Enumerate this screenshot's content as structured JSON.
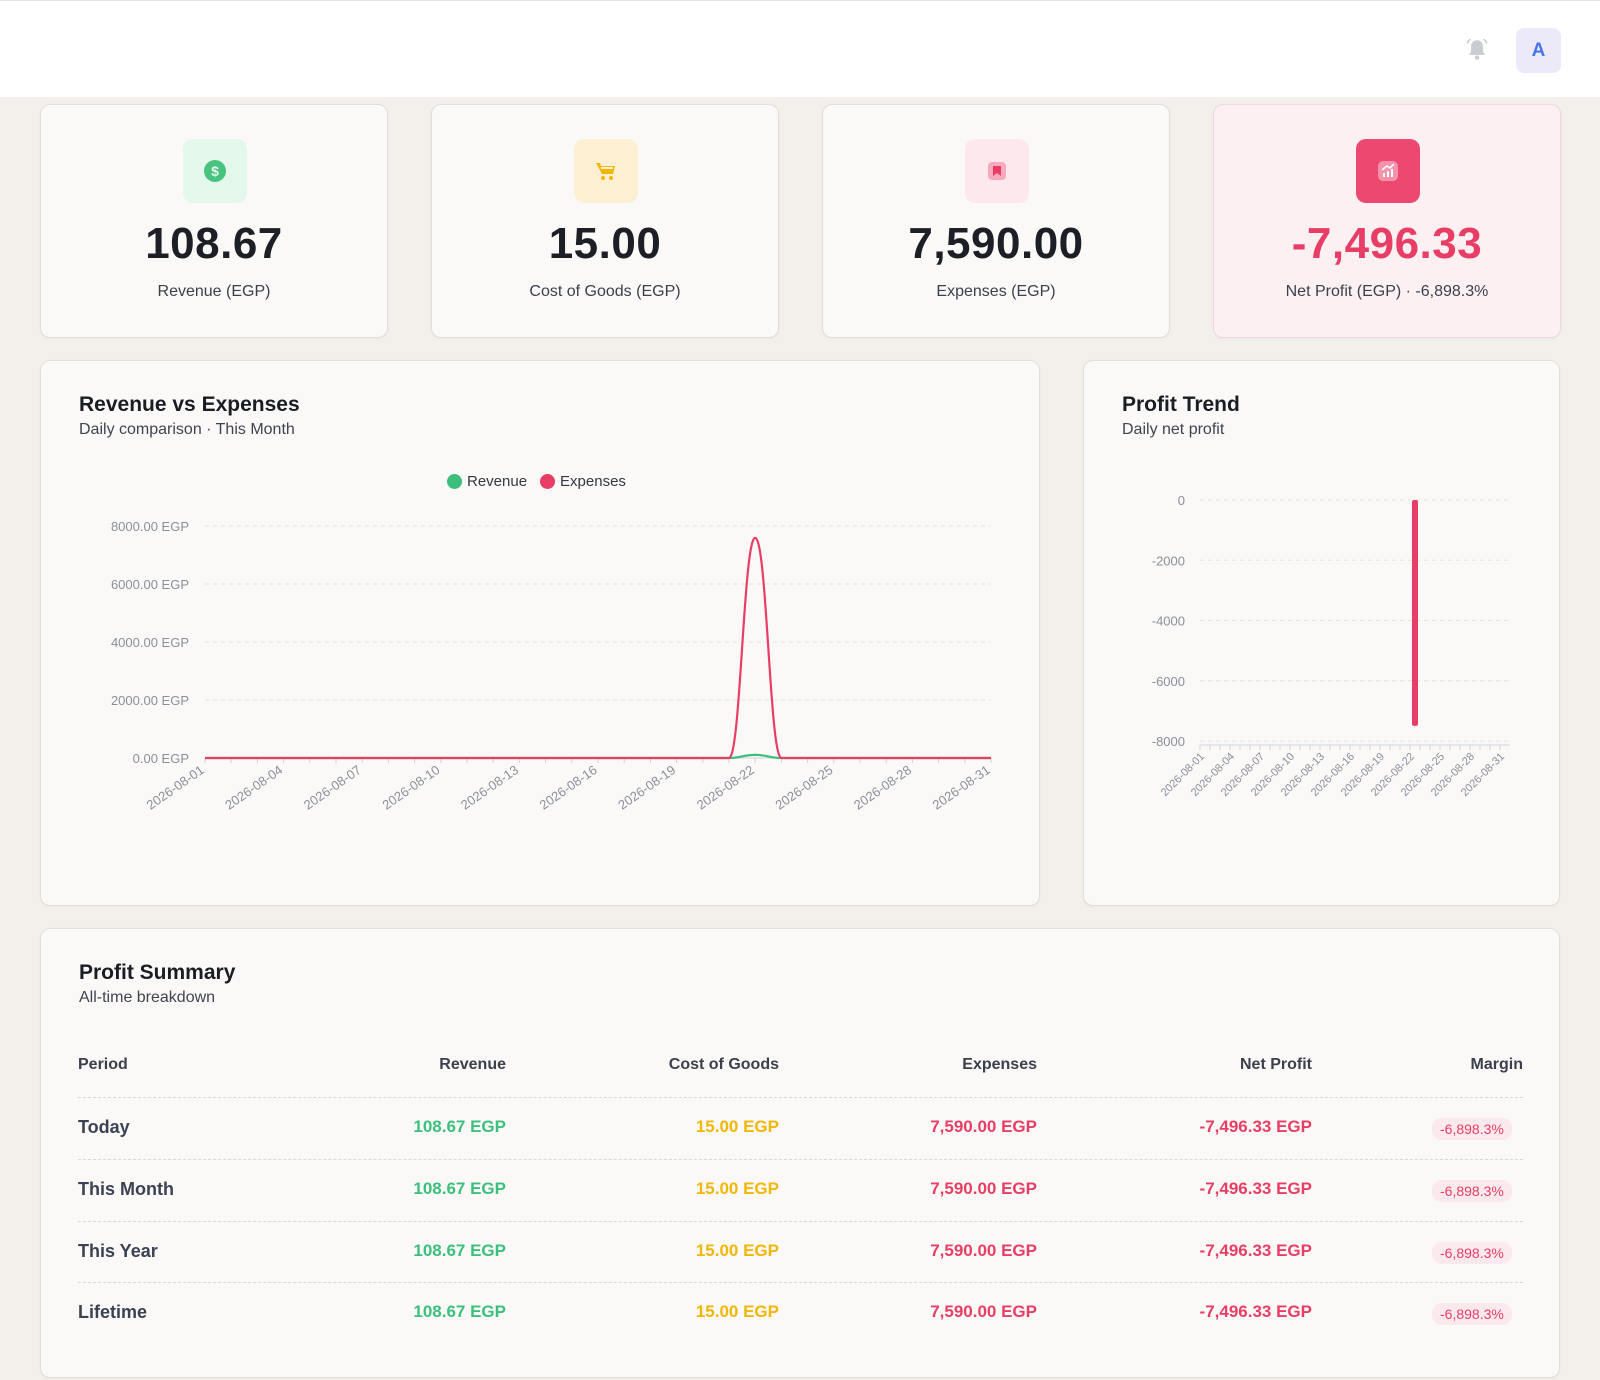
{
  "header": {
    "avatar_initial": "A"
  },
  "stats": [
    {
      "value": "108.67",
      "label": "Revenue (EGP)",
      "icon": "dollar-icon",
      "color": "#3cbf7c"
    },
    {
      "value": "15.00",
      "label": "Cost of Goods (EGP)",
      "icon": "cart-icon",
      "color": "#f2b705"
    },
    {
      "value": "7,590.00",
      "label": "Expenses (EGP)",
      "icon": "receipt-icon",
      "color": "#e83e66"
    },
    {
      "value": "-7,496.33",
      "label": "Net Profit (EGP) · -6,898.3%",
      "icon": "trend-up-icon",
      "color": "#e83e66"
    }
  ],
  "revenue_chart": {
    "title": "Revenue vs Expenses",
    "subtitle": "Daily comparison · This Month"
  },
  "profit_chart": {
    "title": "Profit Trend",
    "subtitle": "Daily net profit"
  },
  "chart_data": [
    {
      "type": "line",
      "title": "Revenue vs Expenses",
      "x": [
        "2026-08-01",
        "2026-08-02",
        "2026-08-03",
        "2026-08-04",
        "2026-08-05",
        "2026-08-06",
        "2026-08-07",
        "2026-08-08",
        "2026-08-09",
        "2026-08-10",
        "2026-08-11",
        "2026-08-12",
        "2026-08-13",
        "2026-08-14",
        "2026-08-15",
        "2026-08-16",
        "2026-08-17",
        "2026-08-18",
        "2026-08-19",
        "2026-08-20",
        "2026-08-21",
        "2026-08-22",
        "2026-08-23",
        "2026-08-24",
        "2026-08-25",
        "2026-08-26",
        "2026-08-27",
        "2026-08-28",
        "2026-08-29",
        "2026-08-30",
        "2026-08-31"
      ],
      "x_tick_labels": [
        "2026-08-01",
        "2026-08-04",
        "2026-08-07",
        "2026-08-10",
        "2026-08-13",
        "2026-08-16",
        "2026-08-19",
        "2026-08-22",
        "2026-08-25",
        "2026-08-28",
        "2026-08-31"
      ],
      "series": [
        {
          "name": "Revenue",
          "color": "#3cbf7c",
          "values": [
            0,
            0,
            0,
            0,
            0,
            0,
            0,
            0,
            0,
            0,
            0,
            0,
            0,
            0,
            0,
            0,
            0,
            0,
            0,
            0,
            0,
            108.67,
            0,
            0,
            0,
            0,
            0,
            0,
            0,
            0,
            0
          ]
        },
        {
          "name": "Expenses",
          "color": "#e83e66",
          "values": [
            0,
            0,
            0,
            0,
            0,
            0,
            0,
            0,
            0,
            0,
            0,
            0,
            0,
            0,
            0,
            0,
            0,
            0,
            0,
            0,
            0,
            7590,
            0,
            0,
            0,
            0,
            0,
            0,
            0,
            0,
            0
          ]
        }
      ],
      "ylim": [
        0,
        8000
      ],
      "y_ticks": [
        "0.00 EGP",
        "2000.00 EGP",
        "4000.00 EGP",
        "6000.00 EGP",
        "8000.00 EGP"
      ],
      "y_tick_values": [
        0,
        2000,
        4000,
        6000,
        8000
      ],
      "legend": "top",
      "grid": true
    },
    {
      "type": "bar",
      "title": "Profit Trend",
      "categories": [
        "2026-08-01",
        "2026-08-02",
        "2026-08-03",
        "2026-08-04",
        "2026-08-05",
        "2026-08-06",
        "2026-08-07",
        "2026-08-08",
        "2026-08-09",
        "2026-08-10",
        "2026-08-11",
        "2026-08-12",
        "2026-08-13",
        "2026-08-14",
        "2026-08-15",
        "2026-08-16",
        "2026-08-17",
        "2026-08-18",
        "2026-08-19",
        "2026-08-20",
        "2026-08-21",
        "2026-08-22",
        "2026-08-23",
        "2026-08-24",
        "2026-08-25",
        "2026-08-26",
        "2026-08-27",
        "2026-08-28",
        "2026-08-29",
        "2026-08-30",
        "2026-08-31"
      ],
      "x_tick_labels": [
        "2026-08-01",
        "2026-08-04",
        "2026-08-07",
        "2026-08-10",
        "2026-08-13",
        "2026-08-16",
        "2026-08-19",
        "2026-08-22",
        "2026-08-25",
        "2026-08-28",
        "2026-08-31"
      ],
      "values": [
        0,
        0,
        0,
        0,
        0,
        0,
        0,
        0,
        0,
        0,
        0,
        0,
        0,
        0,
        0,
        0,
        0,
        0,
        0,
        0,
        0,
        -7496.33,
        0,
        0,
        0,
        0,
        0,
        0,
        0,
        0,
        0
      ],
      "color": "#e83e66",
      "ylim": [
        -8000,
        0
      ],
      "y_ticks": [
        "0",
        "-2000",
        "-4000",
        "-6000",
        "-8000"
      ],
      "y_tick_values": [
        0,
        -2000,
        -4000,
        -6000,
        -8000
      ],
      "grid": true
    }
  ],
  "summary": {
    "title": "Profit Summary",
    "subtitle": "All-time breakdown",
    "columns": [
      "Period",
      "Revenue",
      "Cost of Goods",
      "Expenses",
      "Net Profit",
      "Margin"
    ],
    "rows": [
      {
        "period": "Today",
        "revenue": "108.67 EGP",
        "cogs": "15.00 EGP",
        "expenses": "7,590.00 EGP",
        "net": "-7,496.33 EGP",
        "margin": "-6,898.3%"
      },
      {
        "period": "This Month",
        "revenue": "108.67 EGP",
        "cogs": "15.00 EGP",
        "expenses": "7,590.00 EGP",
        "net": "-7,496.33 EGP",
        "margin": "-6,898.3%"
      },
      {
        "period": "This Year",
        "revenue": "108.67 EGP",
        "cogs": "15.00 EGP",
        "expenses": "7,590.00 EGP",
        "net": "-7,496.33 EGP",
        "margin": "-6,898.3%"
      },
      {
        "period": "Lifetime",
        "revenue": "108.67 EGP",
        "cogs": "15.00 EGP",
        "expenses": "7,590.00 EGP",
        "net": "-7,496.33 EGP",
        "margin": "-6,898.3%"
      }
    ]
  }
}
